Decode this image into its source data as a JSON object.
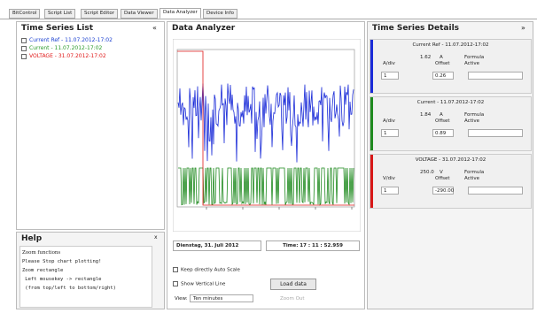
{
  "tabs": [
    "BitControl",
    "Script List",
    "Script Editor",
    "Data Viewer",
    "Data Analyzer",
    "Device Info"
  ],
  "left": {
    "title": "Time Series List",
    "collapse": "«",
    "items": [
      "Current Ref - 11.07.2012-17:02",
      "Current - 11.07.2012-17:02",
      "VOLTAGE - 31.07.2012-17:02"
    ]
  },
  "help": {
    "title": "Help",
    "close": "x",
    "lines": [
      "Zoom functions",
      "Please Stop chart plotting!",
      "Zoom rectangle",
      " Left mousekey -> rectangle",
      " (from top/left to bottom/right)"
    ]
  },
  "center": {
    "title": "Data Analyzer",
    "date": "Dienstag, 31. Juli 2012",
    "time": "Time: 17 : 11 : 52.959",
    "checks": [
      "Keep directly Auto Scale",
      "Show Vertical Line"
    ],
    "load": "Load data",
    "view_label": "View:",
    "view_value": "Ten minutes",
    "zoom_out": "Zoom Out"
  },
  "right": {
    "title": "Time Series Details",
    "collapse": "»",
    "cards": [
      {
        "title": "Current Ref - 11.07.2012-17:02",
        "scale": "1.62",
        "unit": "A",
        "div": "A/div",
        "offset_label": "Offset",
        "offset": "0.26",
        "formula": "Formula",
        "active": "Active",
        "count": "1"
      },
      {
        "title": "Current - 11.07.2012-17:02",
        "scale": "1.84",
        "unit": "A",
        "div": "A/div",
        "offset_label": "Offset",
        "offset": "0.89",
        "formula": "Formula",
        "active": "Active",
        "count": "1"
      },
      {
        "title": "VOLTAGE - 31.07.2012-17:02",
        "scale": "250.0",
        "unit": "V",
        "div": "V/div",
        "offset_label": "Offset",
        "offset": "-290.00",
        "formula": "Formula",
        "active": "Active",
        "count": "1"
      }
    ]
  }
}
